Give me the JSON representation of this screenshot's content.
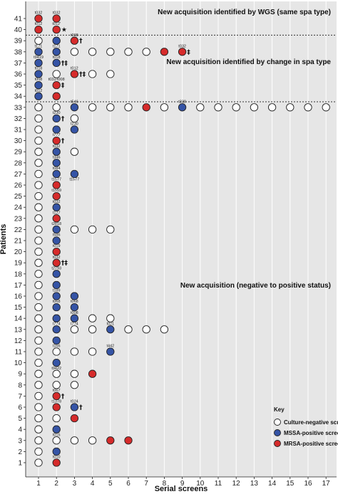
{
  "chart_data": {
    "type": "scatter",
    "xlabel": "Serial screens",
    "ylabel": "Patients",
    "x_ticks": [
      1,
      2,
      3,
      4,
      5,
      6,
      7,
      8,
      9,
      10,
      11,
      12,
      13,
      14,
      15,
      16,
      17
    ],
    "y_ticks": [
      1,
      2,
      3,
      4,
      5,
      6,
      7,
      8,
      9,
      10,
      11,
      12,
      13,
      14,
      15,
      16,
      17,
      18,
      19,
      20,
      21,
      22,
      23,
      24,
      25,
      26,
      27,
      28,
      29,
      30,
      31,
      32,
      33,
      34,
      35,
      36,
      37,
      38,
      39,
      40,
      41
    ],
    "xlim": [
      0.5,
      17.5
    ],
    "ylim": [
      0.5,
      41.5
    ],
    "colors": {
      "negative": "#ffffff",
      "mssa": "#3554a6",
      "mrsa": "#d62b2b",
      "background": "#e6e6e6"
    },
    "annotations": [
      {
        "label": "New acquisition identified by WGS (same spa type)",
        "y": 41
      },
      {
        "label": "New acquisition identified by change in spa type",
        "y": 37
      },
      {
        "label": "New acquisition (negative to positive status)",
        "y": 15
      }
    ],
    "separators": [
      39.5,
      33.5
    ],
    "legend": {
      "title": "Key",
      "position": "bottom-right",
      "items": [
        {
          "status": "N",
          "label": "Culture-negative screen"
        },
        {
          "status": "M",
          "label": "MSSA-positive screen"
        },
        {
          "status": "R",
          "label": "MRSA-positive screen"
        }
      ]
    },
    "patients": [
      {
        "id": 41,
        "screens": [
          {
            "s": "R",
            "spa": "t032"
          },
          {
            "s": "R",
            "spa": "t032"
          }
        ]
      },
      {
        "id": 40,
        "screens": [
          {
            "s": "R",
            "spa": "t012"
          },
          {
            "s": "R",
            "spa": "t012'",
            "sym": "★"
          }
        ]
      },
      {
        "id": 39,
        "screens": [
          {
            "s": "N"
          },
          {
            "s": "M"
          },
          {
            "s": "R",
            "spa": "t008",
            "sym": "†"
          }
        ]
      },
      {
        "id": 38,
        "screens": [
          {
            "s": "M",
            "spa": "t171"
          },
          {
            "s": "M",
            "spa": "t171"
          },
          {
            "s": "N"
          },
          {
            "s": "N"
          },
          {
            "s": "N"
          },
          {
            "s": "N"
          },
          {
            "s": "N"
          },
          {
            "s": "R"
          },
          {
            "s": "R",
            "spa": "t032",
            "sym": "‡"
          }
        ]
      },
      {
        "id": 37,
        "screens": [
          {
            "s": "M",
            "spa": "t9419"
          },
          {
            "s": "M",
            "spa": "t018",
            "sym": "†‡"
          }
        ]
      },
      {
        "id": 36,
        "screens": [
          {
            "s": "M",
            "spa": "t018"
          },
          {
            "s": "N"
          },
          {
            "s": "R",
            "spa": "t012",
            "sym": "†‡"
          },
          {
            "s": "N"
          },
          {
            "s": "N"
          }
        ]
      },
      {
        "id": 35,
        "screens": [
          {
            "s": "M",
            "spa": "t008"
          },
          {
            "s": "R",
            "spa": "t032/t008",
            "sym": "‡"
          }
        ]
      },
      {
        "id": 34,
        "screens": [
          {
            "s": "M",
            "spa": "t012"
          },
          {
            "s": "R"
          }
        ]
      },
      {
        "id": 33,
        "screens": [
          {
            "s": "N"
          },
          {
            "s": "N"
          },
          {
            "s": "M",
            "spa": "t546"
          },
          {
            "s": "N"
          },
          {
            "s": "N"
          },
          {
            "s": "N"
          },
          {
            "s": "R"
          },
          {
            "s": "N"
          },
          {
            "s": "M",
            "spa": "t338"
          },
          {
            "s": "N"
          },
          {
            "s": "N"
          },
          {
            "s": "N"
          },
          {
            "s": "N"
          },
          {
            "s": "N"
          },
          {
            "s": "N"
          },
          {
            "s": "N"
          },
          {
            "s": "N"
          }
        ]
      },
      {
        "id": 32,
        "screens": [
          {
            "s": "N"
          },
          {
            "s": "M",
            "spa": "t230",
            "sym": "†"
          },
          {
            "s": "N"
          }
        ]
      },
      {
        "id": 31,
        "screens": [
          {
            "s": "N"
          },
          {
            "s": "M"
          },
          {
            "s": "M",
            "spa": "t230"
          }
        ]
      },
      {
        "id": 30,
        "screens": [
          {
            "s": "N"
          },
          {
            "s": "R",
            "spa": "t777",
            "sym": "†"
          }
        ]
      },
      {
        "id": 29,
        "screens": [
          {
            "s": "N"
          },
          {
            "s": "M",
            "spa": "t032"
          },
          {
            "s": "N"
          }
        ]
      },
      {
        "id": 28,
        "screens": [
          {
            "s": "N"
          },
          {
            "s": "M",
            "spa": "t346"
          }
        ]
      },
      {
        "id": 27,
        "screens": [
          {
            "s": "N"
          },
          {
            "s": "M",
            "spa": "t084"
          },
          {
            "s": "M"
          }
        ]
      },
      {
        "id": 26,
        "screens": [
          {
            "s": "N"
          },
          {
            "s": "R",
            "spa": "t1577"
          },
          {
            "s": "_",
            "spa": "t1577"
          }
        ]
      },
      {
        "id": 25,
        "screens": [
          {
            "s": "N"
          },
          {
            "s": "R",
            "spa": "t1559"
          }
        ]
      },
      {
        "id": 24,
        "screens": [
          {
            "s": "N"
          },
          {
            "s": "M",
            "spa": "t032"
          }
        ]
      },
      {
        "id": 23,
        "screens": [
          {
            "s": "N"
          },
          {
            "s": "R",
            "spa": "t127"
          }
        ]
      },
      {
        "id": 22,
        "screens": [
          {
            "s": "N"
          },
          {
            "s": "M",
            "spa": "t2818"
          },
          {
            "s": "N"
          },
          {
            "s": "N"
          },
          {
            "s": "N"
          }
        ]
      },
      {
        "id": 21,
        "screens": [
          {
            "s": "N"
          },
          {
            "s": "M",
            "spa": "t586"
          }
        ]
      },
      {
        "id": 20,
        "screens": [
          {
            "s": "N"
          },
          {
            "s": "R",
            "spa": "t019"
          }
        ]
      },
      {
        "id": 19,
        "screens": [
          {
            "s": "N"
          },
          {
            "s": "R",
            "spa": "t032",
            "sym": "†‡"
          }
        ]
      },
      {
        "id": 18,
        "screens": [
          {
            "s": "N"
          },
          {
            "s": "M",
            "spa": "t2793"
          }
        ]
      },
      {
        "id": 17,
        "screens": [
          {
            "s": "N"
          },
          {
            "s": "M"
          }
        ]
      },
      {
        "id": 16,
        "screens": [
          {
            "s": "N"
          },
          {
            "s": "M",
            "spa": "t189"
          },
          {
            "s": "M"
          }
        ]
      },
      {
        "id": 15,
        "screens": [
          {
            "s": "N"
          },
          {
            "s": "M",
            "spa": "t068"
          },
          {
            "s": "M",
            "spa": "t068"
          }
        ]
      },
      {
        "id": 14,
        "screens": [
          {
            "s": "N"
          },
          {
            "s": "M"
          },
          {
            "s": "M",
            "spa": "t008"
          },
          {
            "s": "N"
          },
          {
            "s": "N"
          }
        ]
      },
      {
        "id": 13,
        "screens": [
          {
            "s": "N"
          },
          {
            "s": "M",
            "spa": "t774"
          },
          {
            "s": "N",
            "spa": "t774"
          },
          {
            "s": "N"
          },
          {
            "s": "M",
            "spa": "t021"
          },
          {
            "s": "N"
          },
          {
            "s": "N"
          },
          {
            "s": "N"
          }
        ]
      },
      {
        "id": 12,
        "screens": [
          {
            "s": "N"
          },
          {
            "s": "M"
          }
        ]
      },
      {
        "id": 11,
        "screens": [
          {
            "s": "N"
          },
          {
            "s": "N",
            "spa": "t166"
          },
          {
            "s": "N"
          },
          {
            "s": "N"
          },
          {
            "s": "M",
            "spa": "t442"
          }
        ]
      },
      {
        "id": 10,
        "screens": [
          {
            "s": "N"
          },
          {
            "s": "M"
          }
        ]
      },
      {
        "id": 9,
        "screens": [
          {
            "s": "N"
          },
          {
            "s": "N",
            "spa": "t9422"
          },
          {
            "s": "N"
          },
          {
            "s": "R"
          }
        ]
      },
      {
        "id": 8,
        "screens": [
          {
            "s": "N"
          },
          {
            "s": "N"
          },
          {
            "s": "N"
          }
        ]
      },
      {
        "id": 7,
        "screens": [
          {
            "s": "N"
          },
          {
            "s": "R",
            "spa": "t067",
            "sym": "†"
          }
        ]
      },
      {
        "id": 6,
        "screens": [
          {
            "s": "N"
          },
          {
            "s": "R",
            "spa": "t1378"
          },
          {
            "s": "M",
            "spa": "t024",
            "sym": "†"
          }
        ]
      },
      {
        "id": 5,
        "screens": [
          {
            "s": "N"
          },
          {
            "s": "N"
          },
          {
            "s": "R"
          }
        ]
      },
      {
        "id": 4,
        "screens": [
          {
            "s": "N"
          },
          {
            "s": "M"
          }
        ]
      },
      {
        "id": 3,
        "screens": [
          {
            "s": "N"
          },
          {
            "s": "N",
            "spa": "t015"
          },
          {
            "s": "N"
          },
          {
            "s": "N"
          },
          {
            "s": "R"
          },
          {
            "s": "R"
          }
        ]
      },
      {
        "id": 2,
        "screens": [
          {
            "s": "N"
          },
          {
            "s": "M"
          }
        ]
      },
      {
        "id": 1,
        "screens": [
          {
            "s": "N"
          },
          {
            "s": "R",
            "spa": "t010"
          }
        ]
      }
    ]
  }
}
